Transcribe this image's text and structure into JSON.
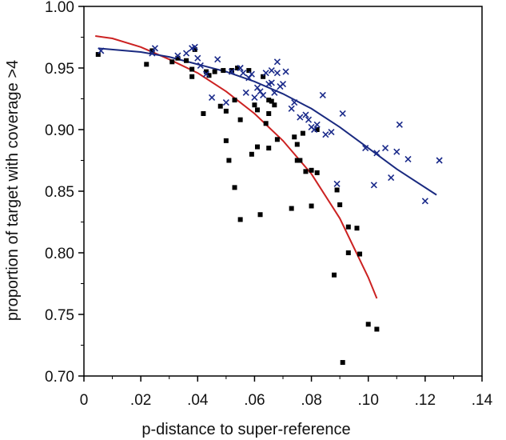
{
  "chart_data": {
    "type": "scatter",
    "title": "",
    "xlabel": "p-distance to super-reference",
    "ylabel": "proportion of target with coverage >4",
    "xlim": [
      0,
      0.14
    ],
    "ylim": [
      0.7,
      1.0
    ],
    "x_ticks": [
      0,
      0.02,
      0.04,
      0.06,
      0.08,
      0.1,
      0.12,
      0.14
    ],
    "x_tick_labels": [
      "0",
      ".02",
      ".04",
      ".06",
      ".08",
      ".10",
      ".12",
      ".14"
    ],
    "y_ticks": [
      0.7,
      0.75,
      0.8,
      0.85,
      0.9,
      0.95,
      1.0
    ],
    "y_tick_labels": [
      "0.70",
      "0.75",
      "0.80",
      "0.85",
      "0.90",
      "0.95",
      "1.00"
    ],
    "grid": false,
    "series": [
      {
        "marker": "square",
        "color": "#000000",
        "points": [
          [
            0.005,
            0.961
          ],
          [
            0.022,
            0.953
          ],
          [
            0.024,
            0.964
          ],
          [
            0.031,
            0.955
          ],
          [
            0.033,
            0.958
          ],
          [
            0.036,
            0.956
          ],
          [
            0.038,
            0.949
          ],
          [
            0.038,
            0.943
          ],
          [
            0.039,
            0.965
          ],
          [
            0.042,
            0.913
          ],
          [
            0.043,
            0.947
          ],
          [
            0.044,
            0.944
          ],
          [
            0.046,
            0.947
          ],
          [
            0.048,
            0.919
          ],
          [
            0.049,
            0.948
          ],
          [
            0.05,
            0.891
          ],
          [
            0.05,
            0.915
          ],
          [
            0.051,
            0.875
          ],
          [
            0.052,
            0.948
          ],
          [
            0.053,
            0.924
          ],
          [
            0.053,
            0.853
          ],
          [
            0.054,
            0.95
          ],
          [
            0.055,
            0.908
          ],
          [
            0.055,
            0.827
          ],
          [
            0.058,
            0.948
          ],
          [
            0.059,
            0.88
          ],
          [
            0.06,
            0.92
          ],
          [
            0.061,
            0.916
          ],
          [
            0.061,
            0.886
          ],
          [
            0.062,
            0.831
          ],
          [
            0.063,
            0.943
          ],
          [
            0.064,
            0.905
          ],
          [
            0.065,
            0.924
          ],
          [
            0.065,
            0.913
          ],
          [
            0.065,
            0.885
          ],
          [
            0.066,
            0.923
          ],
          [
            0.067,
            0.92
          ],
          [
            0.068,
            0.892
          ],
          [
            0.073,
            0.836
          ],
          [
            0.074,
            0.894
          ],
          [
            0.075,
            0.875
          ],
          [
            0.075,
            0.888
          ],
          [
            0.076,
            0.875
          ],
          [
            0.077,
            0.897
          ],
          [
            0.078,
            0.866
          ],
          [
            0.08,
            0.838
          ],
          [
            0.08,
            0.867
          ],
          [
            0.082,
            0.865
          ],
          [
            0.082,
            0.9
          ],
          [
            0.088,
            0.782
          ],
          [
            0.089,
            0.851
          ],
          [
            0.09,
            0.839
          ],
          [
            0.091,
            0.711
          ],
          [
            0.093,
            0.821
          ],
          [
            0.093,
            0.8
          ],
          [
            0.096,
            0.82
          ],
          [
            0.097,
            0.799
          ],
          [
            0.1,
            0.742
          ],
          [
            0.103,
            0.738
          ]
        ]
      },
      {
        "marker": "x",
        "color": "#1a2a8a",
        "points": [
          [
            0.006,
            0.964
          ],
          [
            0.024,
            0.962
          ],
          [
            0.025,
            0.966
          ],
          [
            0.033,
            0.96
          ],
          [
            0.036,
            0.962
          ],
          [
            0.038,
            0.966
          ],
          [
            0.039,
            0.967
          ],
          [
            0.04,
            0.958
          ],
          [
            0.041,
            0.952
          ],
          [
            0.043,
            0.945
          ],
          [
            0.045,
            0.926
          ],
          [
            0.047,
            0.957
          ],
          [
            0.05,
            0.922
          ],
          [
            0.052,
            0.947
          ],
          [
            0.055,
            0.95
          ],
          [
            0.056,
            0.946
          ],
          [
            0.057,
            0.93
          ],
          [
            0.058,
            0.942
          ],
          [
            0.059,
            0.945
          ],
          [
            0.06,
            0.926
          ],
          [
            0.061,
            0.934
          ],
          [
            0.062,
            0.931
          ],
          [
            0.063,
            0.928
          ],
          [
            0.064,
            0.946
          ],
          [
            0.065,
            0.937
          ],
          [
            0.066,
            0.938
          ],
          [
            0.066,
            0.948
          ],
          [
            0.067,
            0.93
          ],
          [
            0.068,
            0.955
          ],
          [
            0.068,
            0.946
          ],
          [
            0.069,
            0.935
          ],
          [
            0.07,
            0.937
          ],
          [
            0.071,
            0.947
          ],
          [
            0.073,
            0.917
          ],
          [
            0.074,
            0.922
          ],
          [
            0.076,
            0.91
          ],
          [
            0.078,
            0.912
          ],
          [
            0.079,
            0.908
          ],
          [
            0.08,
            0.902
          ],
          [
            0.081,
            0.9
          ],
          [
            0.082,
            0.904
          ],
          [
            0.084,
            0.928
          ],
          [
            0.085,
            0.896
          ],
          [
            0.087,
            0.898
          ],
          [
            0.089,
            0.856
          ],
          [
            0.091,
            0.913
          ],
          [
            0.099,
            0.885
          ],
          [
            0.102,
            0.855
          ],
          [
            0.103,
            0.881
          ],
          [
            0.106,
            0.885
          ],
          [
            0.108,
            0.861
          ],
          [
            0.11,
            0.882
          ],
          [
            0.111,
            0.904
          ],
          [
            0.114,
            0.876
          ],
          [
            0.12,
            0.842
          ],
          [
            0.125,
            0.875
          ]
        ]
      }
    ],
    "fit_lines": [
      {
        "color": "#cc2222",
        "points": [
          [
            0.004,
            0.976
          ],
          [
            0.01,
            0.974
          ],
          [
            0.02,
            0.967
          ],
          [
            0.03,
            0.957
          ],
          [
            0.04,
            0.946
          ],
          [
            0.05,
            0.931
          ],
          [
            0.06,
            0.913
          ],
          [
            0.07,
            0.891
          ],
          [
            0.08,
            0.864
          ],
          [
            0.09,
            0.828
          ],
          [
            0.1,
            0.78
          ],
          [
            0.103,
            0.763
          ]
        ]
      },
      {
        "color": "#1a2a80",
        "points": [
          [
            0.005,
            0.966
          ],
          [
            0.02,
            0.963
          ],
          [
            0.03,
            0.959
          ],
          [
            0.04,
            0.953
          ],
          [
            0.05,
            0.947
          ],
          [
            0.06,
            0.939
          ],
          [
            0.07,
            0.929
          ],
          [
            0.08,
            0.917
          ],
          [
            0.09,
            0.902
          ],
          [
            0.1,
            0.885
          ],
          [
            0.11,
            0.868
          ],
          [
            0.124,
            0.847
          ]
        ]
      }
    ]
  }
}
